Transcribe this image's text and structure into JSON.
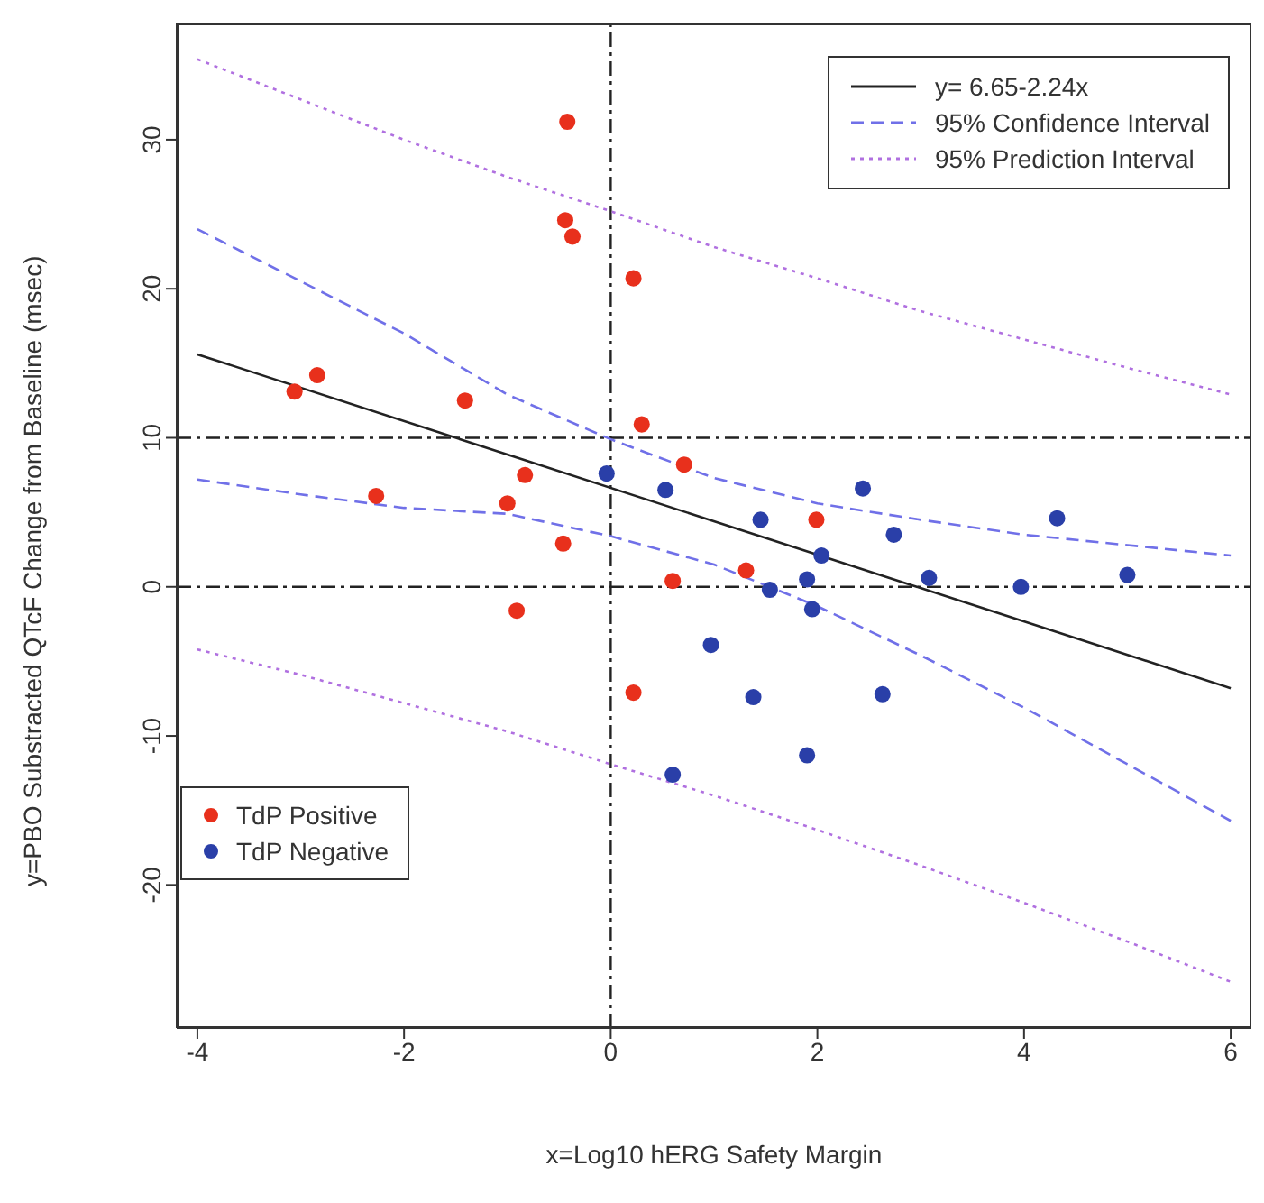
{
  "chart_data": {
    "type": "scatter",
    "xlabel": "x=Log10 hERG Safety Margin",
    "ylabel": "y=PBO Substracted QTcF Change from Baseline (msec)",
    "xlim": [
      -4.2,
      6.2
    ],
    "ylim": [
      -29.6,
      37.8
    ],
    "xticks": [
      -4,
      -2,
      0,
      2,
      4,
      6
    ],
    "yticks": [
      -20,
      -10,
      0,
      10,
      20,
      30
    ],
    "grid": false,
    "legend": "top right",
    "series": [
      {
        "name": "y= 6.65-2.24x",
        "type": "line",
        "color": "#222222",
        "line_style": "solid",
        "marker": "none",
        "x": [
          -4,
          6
        ],
        "values": [
          15.6,
          -6.8
        ]
      },
      {
        "name": "95% Confidence Interval",
        "type": "line",
        "color": "#7070e8",
        "line_style": "dashed",
        "marker": "none",
        "x": [
          -4,
          -3,
          -2,
          -1,
          0,
          1,
          2,
          3,
          4,
          5,
          6
        ],
        "values": [
          24.0,
          20.5,
          17.0,
          12.9,
          9.9,
          7.3,
          5.6,
          4.5,
          3.5,
          2.8,
          2.1
        ]
      },
      {
        "type": "line",
        "color": "#7070e8",
        "line_style": "dashed",
        "marker": "none",
        "x": [
          -4,
          -3,
          -2,
          -1,
          0,
          1,
          2,
          3,
          4,
          5,
          6
        ],
        "values": [
          7.2,
          6.2,
          5.3,
          4.9,
          3.4,
          1.5,
          -1.3,
          -4.6,
          -8.1,
          -11.9,
          -15.7
        ]
      },
      {
        "name": "95% Prediction Interval",
        "type": "line",
        "color": "#b070e0",
        "line_style": "dotted",
        "marker": "none",
        "x": [
          -4,
          -3,
          -2,
          -1,
          0,
          1,
          2,
          3,
          4,
          5,
          6
        ],
        "values": [
          35.4,
          32.7,
          30.0,
          27.5,
          25.2,
          22.8,
          20.7,
          18.5,
          16.6,
          14.7,
          12.9
        ]
      },
      {
        "type": "line",
        "color": "#b070e0",
        "line_style": "dotted",
        "marker": "none",
        "x": [
          -4,
          -3,
          -2,
          -1,
          0,
          1,
          2,
          3,
          4,
          5,
          6
        ],
        "values": [
          -4.2,
          -5.9,
          -7.8,
          -9.7,
          -11.9,
          -14.0,
          -16.3,
          -18.7,
          -21.2,
          -23.8,
          -26.5
        ]
      },
      {
        "name": "TdP Positive",
        "color": "#e8301c",
        "marker": "circle",
        "x": [
          -3.06,
          -2.84,
          -1.41,
          -2.27,
          -0.83,
          -1.0,
          -0.46,
          -0.42,
          -0.44,
          -0.37,
          0.22,
          0.3,
          0.71,
          0.6,
          -0.91,
          0.22,
          1.99,
          1.31
        ],
        "values": [
          13.1,
          14.2,
          12.5,
          6.1,
          7.5,
          5.6,
          2.9,
          31.2,
          24.6,
          23.5,
          20.7,
          10.9,
          8.2,
          0.4,
          -1.6,
          -7.1,
          4.5,
          1.1
        ]
      },
      {
        "name": "TdP Negative",
        "color": "#2a3fa8",
        "marker": "circle",
        "x": [
          -0.04,
          0.53,
          1.45,
          2.44,
          2.74,
          2.04,
          1.9,
          1.54,
          1.95,
          3.08,
          3.97,
          4.32,
          5.0,
          0.97,
          1.38,
          2.63,
          1.9,
          0.6
        ],
        "values": [
          7.6,
          6.5,
          4.5,
          6.6,
          3.5,
          2.1,
          0.5,
          -0.2,
          -1.5,
          0.6,
          0.0,
          4.6,
          0.8,
          -3.9,
          -7.4,
          -7.2,
          -11.3,
          -12.6
        ]
      }
    ],
    "ref_lines": [
      {
        "axis": "x",
        "value": 0,
        "line_style": "dashed",
        "color": "#222222"
      },
      {
        "axis": "y",
        "value": 10,
        "line_style": "dashed",
        "color": "#222222"
      },
      {
        "axis": "y",
        "value": 0,
        "line_style": "dashed",
        "color": "#222222"
      }
    ]
  }
}
